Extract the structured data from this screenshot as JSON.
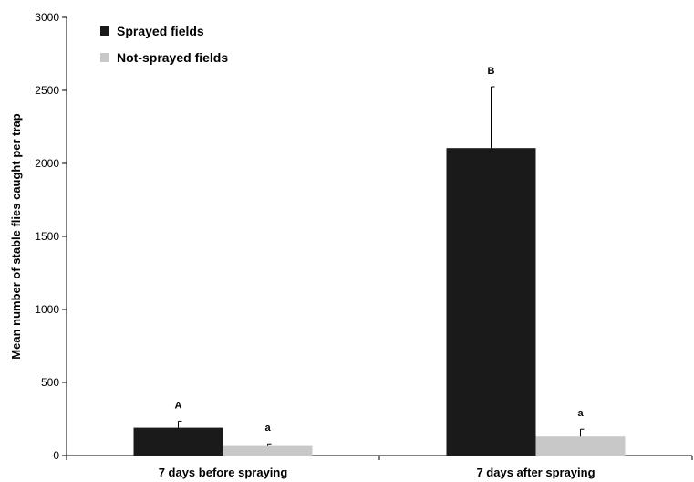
{
  "chart_data": {
    "type": "bar",
    "ylabel": "Mean number of stable flies caught per trap",
    "ylim": [
      0,
      3000
    ],
    "yticks": [
      0,
      500,
      1000,
      1500,
      2000,
      2500,
      3000
    ],
    "categories": [
      "7 days before spraying",
      "7 days after spraying"
    ],
    "series": [
      {
        "name": "Sprayed fields",
        "color": "#1a1a1a",
        "values": [
          190,
          2105
        ],
        "error": [
          45,
          420
        ],
        "significance": [
          "A",
          "B"
        ]
      },
      {
        "name": "Not-sprayed fields",
        "color": "#c8c8c8",
        "values": [
          65,
          130
        ],
        "error": [
          15,
          50
        ],
        "significance": [
          "a",
          "a"
        ]
      }
    ],
    "legend_position": "top-left",
    "grid": false
  }
}
